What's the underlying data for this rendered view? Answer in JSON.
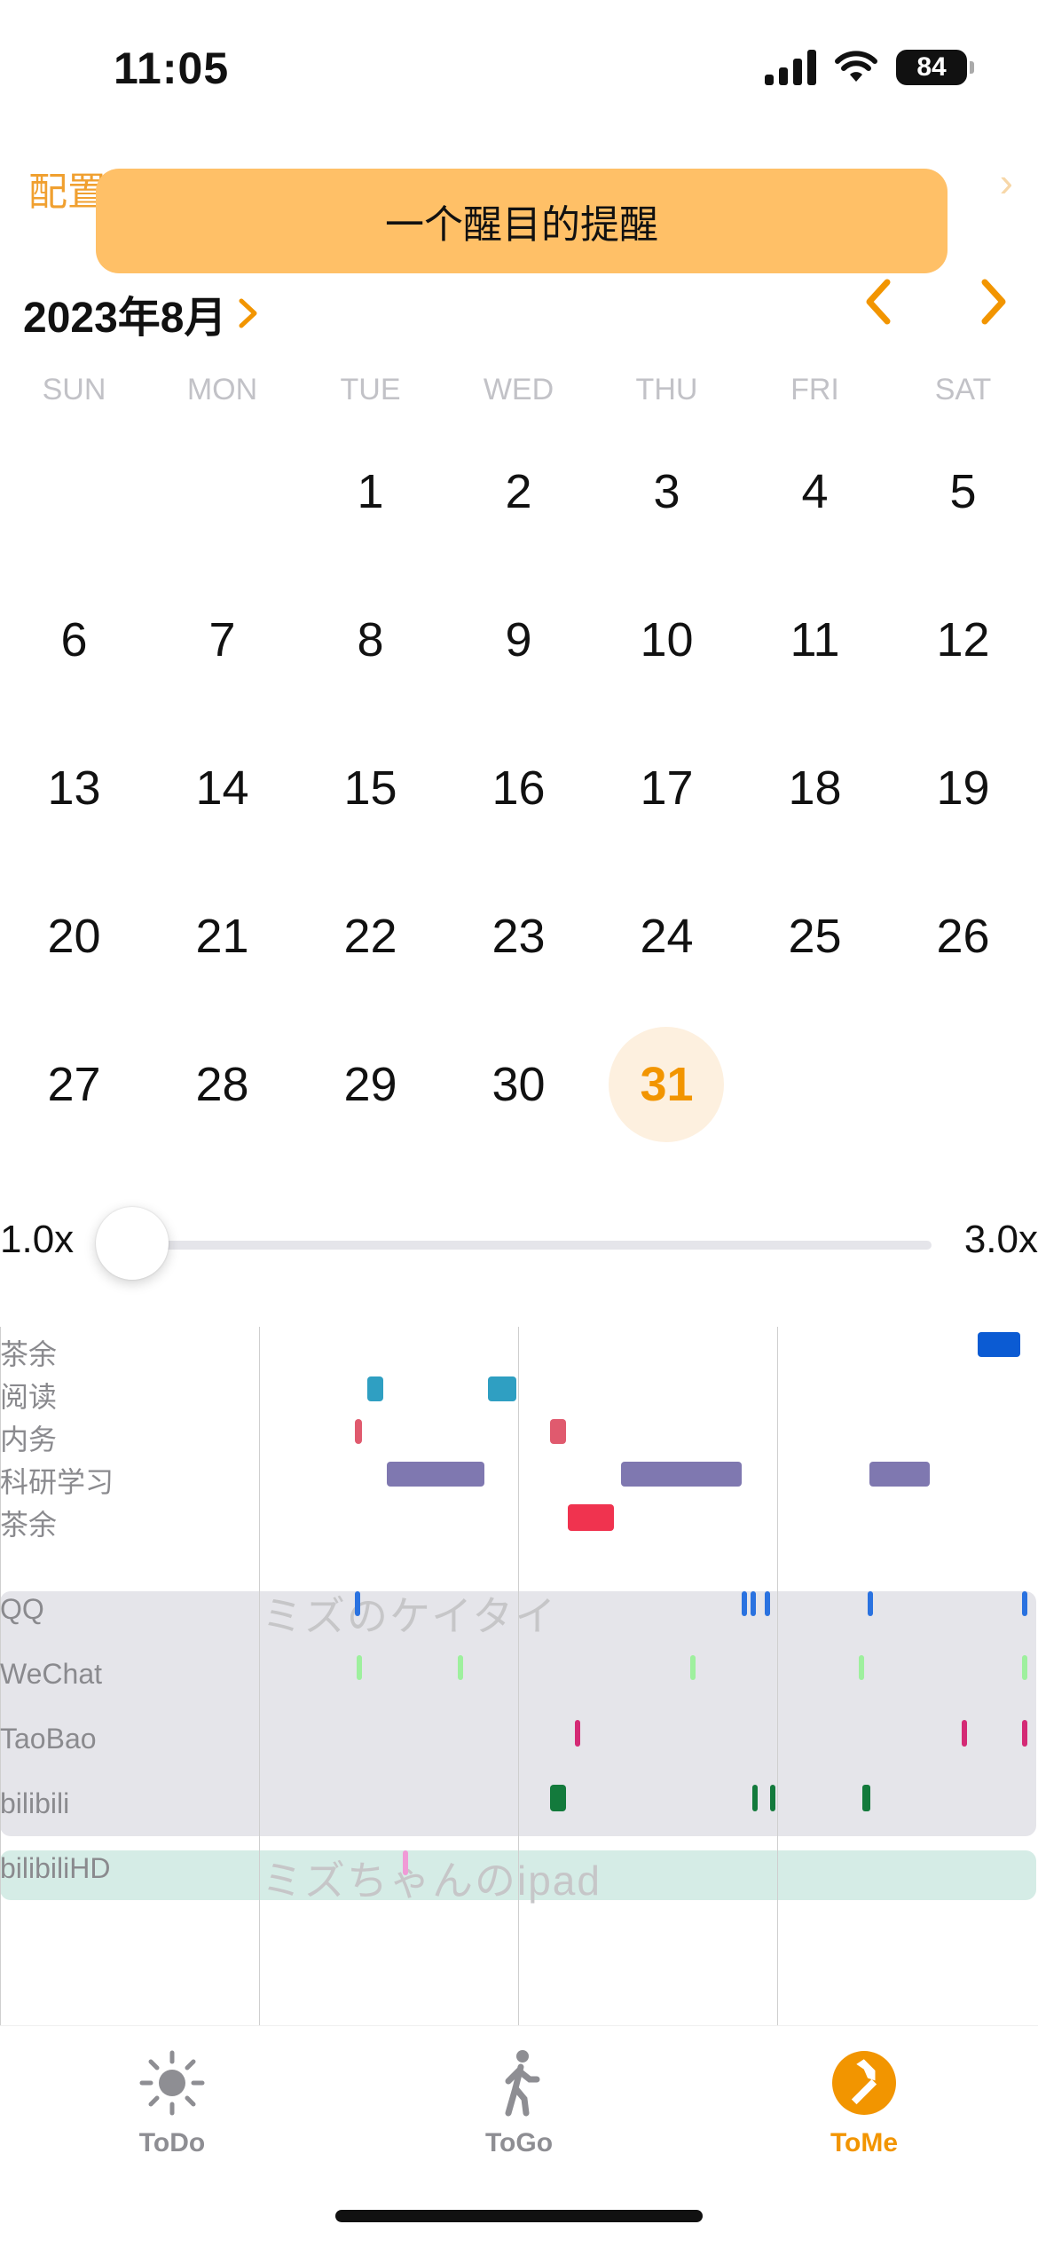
{
  "status_bar": {
    "time": "11:05",
    "battery": "84"
  },
  "header": {
    "config_label": "配置项",
    "toast_text": "一个醒目的提醒"
  },
  "calendar": {
    "month_title": "2023年8月",
    "weekdays": [
      "SUN",
      "MON",
      "TUE",
      "WED",
      "THU",
      "FRI",
      "SAT"
    ],
    "weeks": [
      [
        "",
        "",
        "1",
        "2",
        "3",
        "4",
        "5"
      ],
      [
        "6",
        "7",
        "8",
        "9",
        "10",
        "11",
        "12"
      ],
      [
        "13",
        "14",
        "15",
        "16",
        "17",
        "18",
        "19"
      ],
      [
        "20",
        "21",
        "22",
        "23",
        "24",
        "25",
        "26"
      ],
      [
        "27",
        "28",
        "29",
        "30",
        "31",
        "",
        ""
      ]
    ],
    "today": "31"
  },
  "zoom_slider": {
    "min_label": "1.0x",
    "max_label": "3.0x",
    "value": 1.0
  },
  "timeline": {
    "activity_rows": [
      "茶余",
      "阅读",
      "内务",
      "科研学习",
      "茶余"
    ],
    "devices": [
      {
        "name": "ミズのケイタイ",
        "apps": [
          "QQ",
          "WeChat",
          "TaoBao",
          "bilibili"
        ],
        "color": "#e5e5ea"
      },
      {
        "name": "ミズちゃんのipad",
        "apps": [
          "bilibiliHD"
        ],
        "color": "#d5ece6"
      }
    ]
  },
  "tabbar": {
    "tabs": [
      {
        "label": "ToDo",
        "icon": "sun-icon",
        "active": false
      },
      {
        "label": "ToGo",
        "icon": "walking-person-icon",
        "active": false
      },
      {
        "label": "ToMe",
        "icon": "hammer-icon",
        "active": true
      }
    ],
    "accent": "#f29500"
  }
}
